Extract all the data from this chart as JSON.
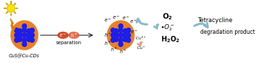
{
  "fig_width": 3.78,
  "fig_height": 1.14,
  "dpi": 100,
  "background": "#ffffff",
  "orange_color": "#E8812A",
  "blue_color": "#1E1EE8",
  "sun_color": "#FFE000",
  "sun_edge": "#C8A800",
  "lightning_color": "#D88010",
  "arrow_color_blue": "#88B8CC",
  "arrow_color_salmon": "#D8A090",
  "text_separation": "separation",
  "text_label": "CuS@Cu-CDs",
  "text_o2": "O$_2$",
  "text_o2_rad": "$\\bullet$O$_2$$^-$",
  "text_h2o2": "H$_2$O$_2$",
  "text_tetracycline": "Tetracycline",
  "text_degradation": "degradation product"
}
